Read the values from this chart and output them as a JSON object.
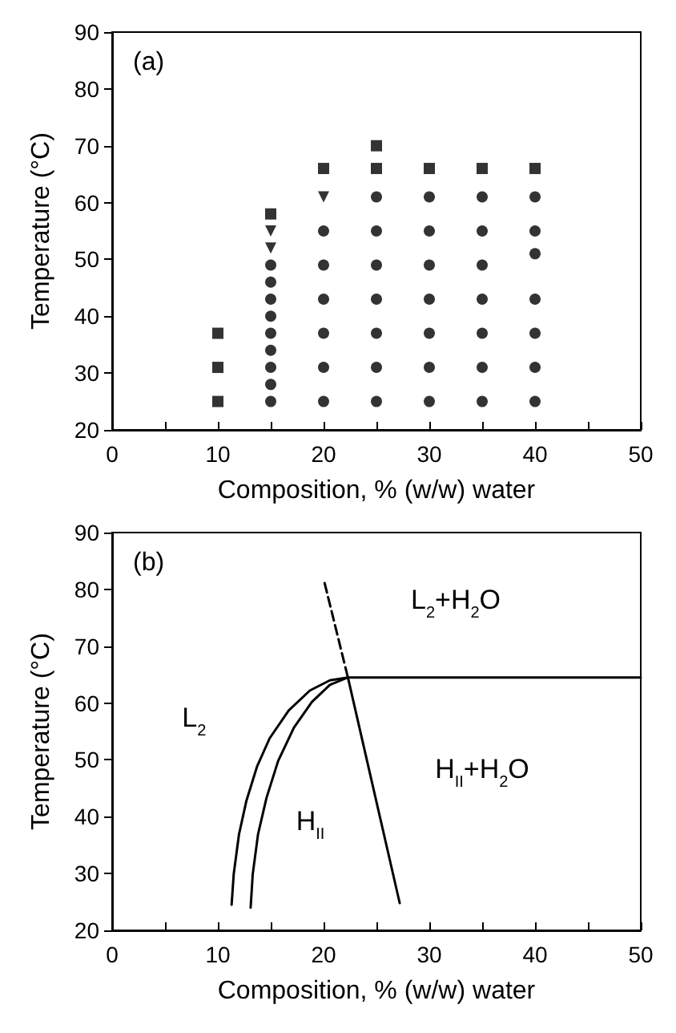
{
  "chart_data": [
    {
      "type": "scatter",
      "title": "(a)",
      "xlabel": "Composition, % (w/w) water",
      "ylabel": "Temperature (°C)",
      "xlim": [
        0,
        50
      ],
      "ylim": [
        20,
        90
      ],
      "xticks": [
        0,
        {
          "value": 5,
          "label": null
        },
        10,
        {
          "value": 15,
          "label": null
        },
        20,
        {
          "value": 25,
          "label": null
        },
        30,
        {
          "value": 35,
          "label": null
        },
        40,
        {
          "value": 45,
          "label": null
        },
        50
      ],
      "yticks": [
        20,
        30,
        40,
        50,
        60,
        70,
        80,
        90
      ],
      "grid": false,
      "series": [
        {
          "marker": "square",
          "color": "#000000",
          "x": [
            10,
            10,
            10,
            15,
            20,
            25,
            25,
            30,
            35,
            40
          ],
          "values": [
            25,
            31,
            37,
            58,
            66,
            66,
            70,
            66,
            66,
            66
          ]
        },
        {
          "marker": "triangle",
          "color": "#000000",
          "x": [
            15,
            15,
            20
          ],
          "values": [
            52,
            55,
            61
          ]
        },
        {
          "marker": "circle",
          "color": "#000000",
          "x": [
            15,
            15,
            15,
            15,
            15,
            15,
            15,
            15,
            15,
            20,
            20,
            20,
            20,
            20,
            20,
            25,
            25,
            25,
            25,
            25,
            25,
            25,
            30,
            30,
            30,
            30,
            30,
            30,
            30,
            35,
            35,
            35,
            35,
            35,
            35,
            35,
            40,
            40,
            40,
            40,
            40,
            40,
            40
          ],
          "values": [
            25,
            28,
            31,
            34,
            37,
            40,
            43,
            46,
            49,
            25,
            31,
            37,
            43,
            49,
            55,
            25,
            31,
            37,
            43,
            49,
            55,
            61,
            25,
            31,
            37,
            43,
            49,
            55,
            61,
            25,
            31,
            37,
            43,
            49,
            55,
            61,
            25,
            31,
            37,
            43,
            51,
            55,
            61
          ]
        }
      ]
    },
    {
      "type": "line",
      "title": "(b)",
      "xlabel": "Composition, % (w/w) water",
      "ylabel": "Temperature (°C)",
      "xlim": [
        0,
        50
      ],
      "ylim": [
        20,
        90
      ],
      "xticks": [
        0,
        {
          "value": 5,
          "label": null
        },
        10,
        {
          "value": 15,
          "label": null
        },
        20,
        {
          "value": 25,
          "label": null
        },
        30,
        {
          "value": 35,
          "label": null
        },
        40,
        {
          "value": 45,
          "label": null
        },
        50
      ],
      "yticks": [
        20,
        30,
        40,
        50,
        60,
        70,
        80,
        90
      ],
      "grid": false,
      "marker": "none",
      "series": [
        {
          "color": "#000000",
          "line_style": "solid",
          "x": [
            11.3,
            11.5,
            12.0,
            12.7,
            13.7,
            14.9,
            16.7,
            18.7,
            20.6,
            22.3,
            50
          ],
          "values": [
            24.5,
            29.9,
            36.9,
            42.8,
            48.8,
            53.8,
            58.7,
            62.2,
            64.0,
            64.5,
            64.5
          ]
        },
        {
          "color": "#000000",
          "line_style": "solid",
          "x": [
            13.1,
            13.3,
            13.8,
            14.6,
            15.7,
            17.2,
            18.9,
            20.6,
            22.3,
            27.2
          ],
          "values": [
            24.0,
            29.9,
            36.9,
            43.3,
            49.8,
            55.7,
            60.2,
            63.2,
            64.5,
            24.8
          ]
        },
        {
          "color": "#000000",
          "line_style": "dashed",
          "x": [
            20.1,
            22.3
          ],
          "values": [
            81.1,
            64.5
          ]
        }
      ],
      "annotations": [
        "L$_{2}$",
        "H$_{II}$",
        "L$_{2}$+H$_{2}$O",
        "H$_{II}$+H$_{2}$O"
      ]
    }
  ]
}
